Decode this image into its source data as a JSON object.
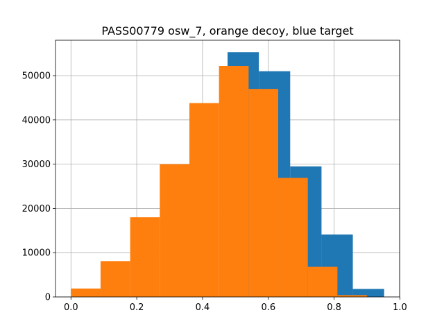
{
  "chart_data": {
    "type": "bar",
    "title": "PASS00779 osw_7, orange decoy, blue target",
    "xlabel": "",
    "ylabel": "",
    "xlim": [
      -0.047,
      0.999
    ],
    "ylim": [
      0,
      58000
    ],
    "grid": true,
    "xticks": [
      0.0,
      0.2,
      0.4,
      0.6,
      0.8,
      1.0
    ],
    "xtick_labels": [
      "0.0",
      "0.2",
      "0.4",
      "0.6",
      "0.8",
      "1.0"
    ],
    "yticks": [
      0,
      10000,
      20000,
      30000,
      40000,
      50000
    ],
    "ytick_labels": [
      "0",
      "10000",
      "20000",
      "30000",
      "40000",
      "50000"
    ],
    "series": [
      {
        "color": "#1f77b4",
        "bin_edges": [
          0.0,
          0.0952,
          0.1904,
          0.2856,
          0.3808,
          0.476,
          0.5712,
          0.6664,
          0.7616,
          0.8568,
          0.952
        ],
        "counts": [
          0,
          0,
          0,
          0,
          0,
          55300,
          51000,
          29500,
          14100,
          1800
        ]
      },
      {
        "color": "#ff7f0e",
        "bin_edges": [
          0.0,
          0.09,
          0.18,
          0.27,
          0.36,
          0.45,
          0.54,
          0.63,
          0.72,
          0.81,
          0.9
        ],
        "counts": [
          1900,
          8100,
          18000,
          30000,
          43800,
          52200,
          47000,
          26900,
          6800,
          400
        ]
      }
    ]
  }
}
